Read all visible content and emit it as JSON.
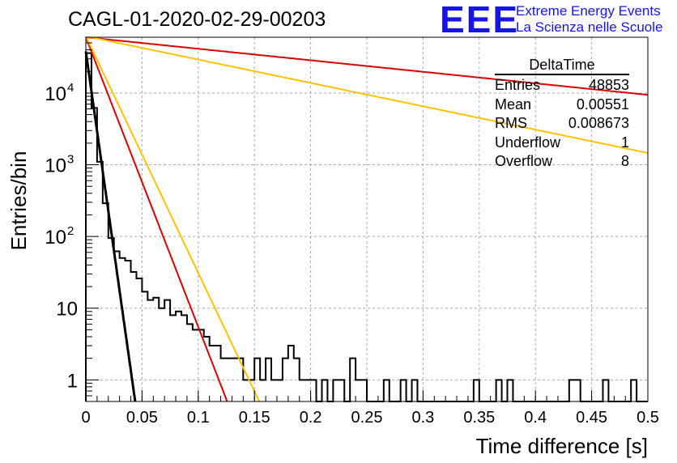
{
  "header": {
    "title": "CAGL-01-2020-02-29-00203",
    "logo_text": "EEE",
    "logo_line1": "Extreme Energy Events",
    "logo_line2": "La Scienza nelle Scuole",
    "logo_color": "#1515e8"
  },
  "stats_box": {
    "title": "DeltaTime",
    "rows": [
      {
        "label": "Entries",
        "value": "48853"
      },
      {
        "label": "Mean",
        "value": "0.00551"
      },
      {
        "label": "RMS",
        "value": "0.008673"
      },
      {
        "label": "Underflow",
        "value": "1"
      },
      {
        "label": "Overflow",
        "value": "8"
      }
    ]
  },
  "chart_data": {
    "type": "histogram",
    "xlabel": "Time difference [s]",
    "ylabel": "Entries/bin",
    "xlim": [
      0,
      0.5
    ],
    "ylim": [
      0.5,
      60000
    ],
    "yscale": "log",
    "grid": true,
    "x_ticks": [
      "0",
      "0.05",
      "0.1",
      "0.15",
      "0.2",
      "0.25",
      "0.3",
      "0.35",
      "0.4",
      "0.45",
      "0.5"
    ],
    "y_ticks": [
      {
        "value": 1,
        "label": "1"
      },
      {
        "value": 10,
        "label": "10"
      },
      {
        "value": 100,
        "label": "10",
        "exp": "2"
      },
      {
        "value": 1000,
        "label": "10",
        "exp": "3"
      },
      {
        "value": 10000,
        "label": "10",
        "exp": "4"
      }
    ],
    "bin_width": 0.005,
    "histogram": {
      "color": "#000000",
      "counts": [
        36000,
        6200,
        1100,
        290,
        95,
        62,
        50,
        46,
        32,
        26,
        17,
        13,
        14,
        10,
        13,
        8,
        9,
        8,
        6,
        5,
        5,
        4,
        3,
        3,
        2,
        2,
        2,
        2,
        1,
        1,
        2,
        1,
        2,
        1,
        1,
        2,
        3,
        2,
        1,
        1,
        1,
        0,
        1,
        0,
        1,
        1,
        0,
        2,
        1,
        1,
        0,
        0,
        0,
        1,
        0,
        0,
        1,
        0,
        1,
        0,
        0,
        0,
        0,
        0,
        0,
        0,
        0,
        0,
        0,
        1,
        0,
        0,
        0,
        1,
        0,
        1,
        0,
        0,
        0,
        0,
        0,
        0,
        0,
        0,
        0,
        0,
        1,
        1,
        0,
        0,
        0,
        0,
        1,
        0,
        0,
        0,
        0,
        1,
        0,
        0
      ]
    },
    "fit_curves": [
      {
        "color": "#000000",
        "stroke": 3,
        "amplitude": 38000,
        "slope": -256,
        "x_range": [
          0,
          0.045
        ]
      },
      {
        "color": "#dd0000",
        "stroke": 2,
        "amplitude": 60000,
        "slope": -93,
        "x_range": [
          0,
          0.14
        ]
      },
      {
        "color": "#ffc200",
        "stroke": 2,
        "amplitude": 62000,
        "slope": -76,
        "x_range": [
          0,
          0.17
        ]
      },
      {
        "color": "#dd0000",
        "stroke": 2,
        "amplitude": 60000,
        "slope": -3.7,
        "x_range": [
          0,
          0.5
        ]
      },
      {
        "color": "#ffc200",
        "stroke": 2,
        "amplitude": 62000,
        "slope": -7.5,
        "x_range": [
          0,
          0.5
        ]
      }
    ]
  }
}
